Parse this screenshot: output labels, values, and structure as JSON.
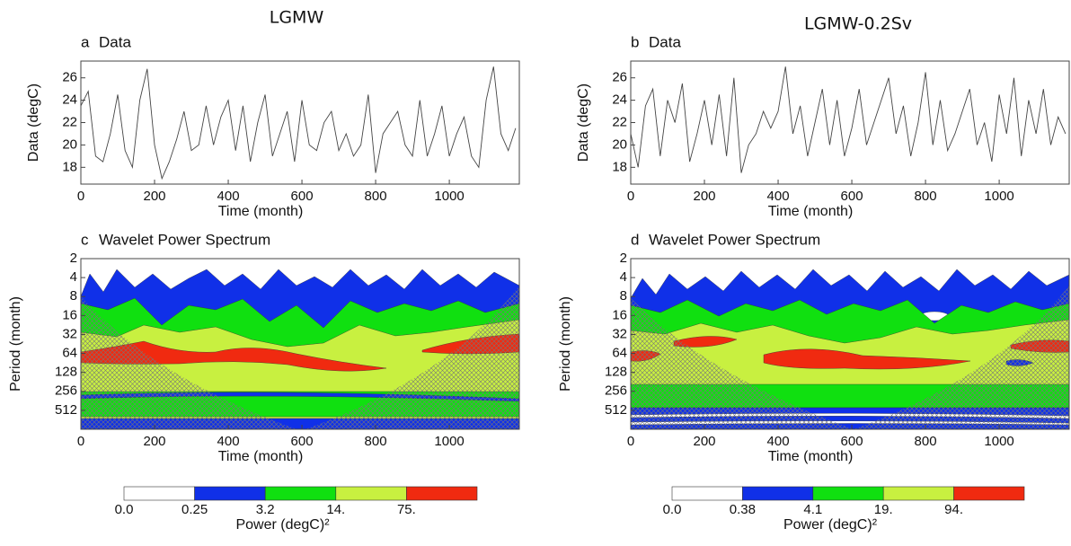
{
  "columns": [
    "LGMW",
    "LGMW-0.2Sv"
  ],
  "chart_data": [
    {
      "type": "line",
      "panel": "a",
      "title": "Data",
      "xlabel": "Time (month)",
      "ylabel": "Data (degC)",
      "color": "#444444",
      "x": [
        0,
        20,
        40,
        60,
        80,
        100,
        120,
        140,
        160,
        180,
        200,
        220,
        240,
        260,
        280,
        300,
        320,
        340,
        360,
        380,
        400,
        420,
        440,
        460,
        480,
        500,
        520,
        540,
        560,
        580,
        600,
        620,
        640,
        660,
        680,
        700,
        720,
        740,
        760,
        780,
        800,
        820,
        840,
        860,
        880,
        900,
        920,
        940,
        960,
        980,
        1000,
        1020,
        1040,
        1060,
        1080,
        1100,
        1120,
        1140,
        1160,
        1180
      ],
      "values": [
        23.5,
        24.8,
        19,
        18.5,
        21,
        24.5,
        19.5,
        18,
        24,
        26.8,
        20,
        17,
        18.5,
        20.5,
        23,
        19.5,
        20,
        23.5,
        20,
        22.5,
        24,
        19.5,
        23.5,
        18.5,
        22,
        24.5,
        19,
        21,
        23,
        18.5,
        24,
        20,
        19.5,
        22,
        23,
        19.5,
        21,
        19,
        20,
        24.5,
        17.5,
        21,
        22,
        23,
        20,
        19,
        24,
        19,
        21,
        23.5,
        19,
        21,
        22.5,
        19,
        18,
        24,
        27,
        21,
        19.5,
        21.5
      ],
      "xlim": [
        0,
        1190
      ],
      "xticks": [
        0,
        200,
        400,
        600,
        800,
        1000
      ],
      "ylim": [
        16.5,
        27.5
      ],
      "yticks": [
        18,
        20,
        22,
        24,
        26
      ]
    },
    {
      "type": "line",
      "panel": "b",
      "title": "Data",
      "xlabel": "Time (month)",
      "ylabel": "Data (degC)",
      "color": "#444444",
      "x": [
        0,
        20,
        40,
        60,
        80,
        100,
        120,
        140,
        160,
        180,
        200,
        220,
        240,
        260,
        280,
        300,
        320,
        340,
        360,
        380,
        400,
        420,
        440,
        460,
        480,
        500,
        520,
        540,
        560,
        580,
        600,
        620,
        640,
        660,
        680,
        700,
        720,
        740,
        760,
        780,
        800,
        820,
        840,
        860,
        880,
        900,
        920,
        940,
        960,
        980,
        1000,
        1020,
        1040,
        1060,
        1080,
        1100,
        1120,
        1140,
        1160,
        1180
      ],
      "values": [
        21,
        18,
        23.5,
        25,
        19,
        24,
        22,
        25.5,
        18.5,
        21,
        24,
        20,
        24.5,
        19,
        26,
        17.5,
        20,
        21,
        23,
        21.5,
        23,
        27,
        21,
        23.5,
        19,
        22,
        25,
        20,
        24,
        19,
        21.5,
        25,
        20,
        22,
        24,
        26,
        21,
        23.5,
        19,
        22,
        26.5,
        20,
        24,
        19.5,
        21,
        23,
        25,
        20,
        22,
        18.5,
        24.5,
        21,
        26,
        19,
        24,
        21,
        25,
        20,
        22.5,
        21
      ],
      "xlim": [
        0,
        1190
      ],
      "xticks": [
        0,
        200,
        400,
        600,
        800,
        1000
      ],
      "ylim": [
        16.5,
        27.5
      ],
      "yticks": [
        18,
        20,
        22,
        24,
        26
      ]
    },
    {
      "type": "contour",
      "panel": "c",
      "title": "Wavelet Power Spectrum",
      "xlabel": "Time (month)",
      "ylabel": "Period (month)",
      "xlim": [
        0,
        1190
      ],
      "xticks": [
        0,
        200,
        400,
        600,
        800,
        1000
      ],
      "ylim": [
        2,
        1024
      ],
      "yticks": [
        2,
        4,
        8,
        16,
        32,
        64,
        128,
        256,
        512
      ],
      "log_y": true,
      "y_reversed": true,
      "levels": [
        {
          "value": 0,
          "label": "0.0"
        },
        0.25,
        3.2,
        {
          "value": 14,
          "label": "14."
        },
        {
          "value": 75,
          "label": "75."
        }
      ],
      "colors": [
        "#ffffff",
        "#1030e8",
        "#10e010",
        "#c8f040",
        "#f02a10"
      ],
      "colorbar_label": "Power (degC)²"
    },
    {
      "type": "contour",
      "panel": "d",
      "title": "Wavelet Power Spectrum",
      "xlabel": "Time (month)",
      "ylabel": "Period (month)",
      "xlim": [
        0,
        1190
      ],
      "xticks": [
        0,
        200,
        400,
        600,
        800,
        1000
      ],
      "ylim": [
        2,
        1024
      ],
      "yticks": [
        2,
        4,
        8,
        16,
        32,
        64,
        128,
        256,
        512
      ],
      "log_y": true,
      "y_reversed": true,
      "levels": [
        {
          "value": 0,
          "label": "0.0"
        },
        0.38,
        4.1,
        {
          "value": 19,
          "label": "19."
        },
        {
          "value": 94,
          "label": "94."
        }
      ],
      "colors": [
        "#ffffff",
        "#1030e8",
        "#10e010",
        "#c8f040",
        "#f02a10"
      ],
      "colorbar_label": "Power (degC)²"
    }
  ]
}
